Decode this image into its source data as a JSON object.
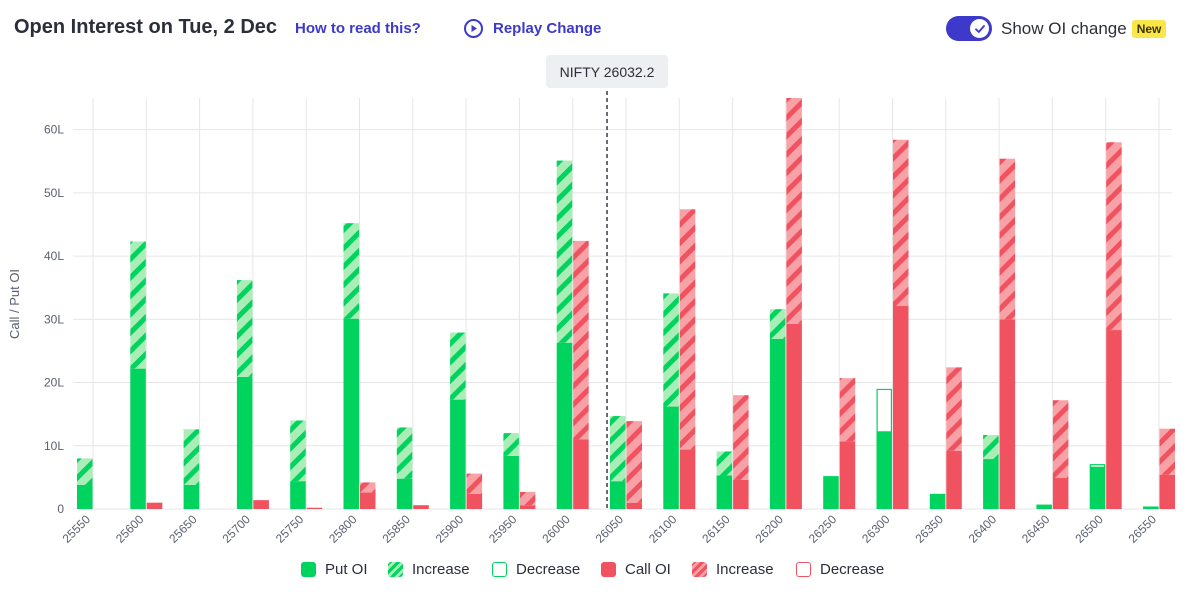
{
  "header": {
    "title": "Open Interest on Tue, 2 Dec",
    "how_to_read": "How to read this?",
    "replay": "Replay Change",
    "toggle_label": "Show OI change",
    "badge": "New",
    "toggle_on": true
  },
  "colors": {
    "put": "#00d35e",
    "put_light": "#a8eeb6",
    "call": "#f0525f",
    "call_light": "#f8a2a8",
    "accent": "#3d3acb",
    "grid": "#e6e6e6"
  },
  "chart_data": {
    "type": "bar",
    "ylabel": "Call / Put OI",
    "y_ticks": [
      "0",
      "10L",
      "20L",
      "30L",
      "40L",
      "50L",
      "60L"
    ],
    "ylim": [
      0,
      65
    ],
    "spot_label": "NIFTY 26032.2",
    "spot_value": 26032.2,
    "categories": [
      "25550",
      "25600",
      "25650",
      "25700",
      "25750",
      "25800",
      "25850",
      "25900",
      "25950",
      "26000",
      "26050",
      "26100",
      "26150",
      "26200",
      "26250",
      "26300",
      "26350",
      "26400",
      "26450",
      "26500",
      "26550"
    ],
    "series": [
      {
        "name": "Put OI",
        "values": [
          3.8,
          22.2,
          3.8,
          20.9,
          4.4,
          30.1,
          4.8,
          17.3,
          8.4,
          26.3,
          4.4,
          16.2,
          5.3,
          26.9,
          5.2,
          12.2,
          2.4,
          7.9,
          0.7,
          6.6,
          0.4
        ]
      },
      {
        "name": "Increase",
        "values": [
          4.2,
          20.1,
          8.8,
          15.3,
          9.6,
          15.1,
          8.1,
          10.6,
          3.6,
          28.8,
          10.3,
          17.9,
          3.8,
          4.7,
          0,
          0,
          0,
          3.8,
          0,
          0,
          0
        ]
      },
      {
        "name": "Decrease",
        "values": [
          0,
          0,
          0,
          0,
          0,
          0,
          0,
          0,
          0,
          0,
          0,
          0,
          0,
          0,
          0,
          6.8,
          0,
          0,
          0,
          0.5,
          0
        ]
      },
      {
        "name": "Call OI",
        "values": [
          0,
          1.0,
          0,
          1.4,
          0.2,
          2.6,
          0.6,
          2.4,
          0.6,
          11.0,
          1.0,
          9.4,
          4.6,
          29.3,
          10.7,
          32.1,
          9.2,
          30.0,
          4.9,
          28.3,
          5.4
        ]
      },
      {
        "name": "Increase",
        "values": [
          0,
          0,
          0,
          0,
          0,
          1.6,
          0,
          3.2,
          2.1,
          31.4,
          12.9,
          38.0,
          13.4,
          35.7,
          10.0,
          26.3,
          13.2,
          25.4,
          12.3,
          29.7,
          7.3
        ]
      },
      {
        "name": "Decrease",
        "values": [
          0,
          0,
          0,
          0,
          0,
          0,
          0,
          0,
          0,
          0,
          0,
          0,
          0,
          0,
          0,
          0,
          0,
          0,
          0,
          0,
          0
        ]
      }
    ],
    "legend": [
      "Put OI",
      "Increase",
      "Decrease",
      "Call OI",
      "Increase",
      "Decrease"
    ],
    "grid": true
  }
}
